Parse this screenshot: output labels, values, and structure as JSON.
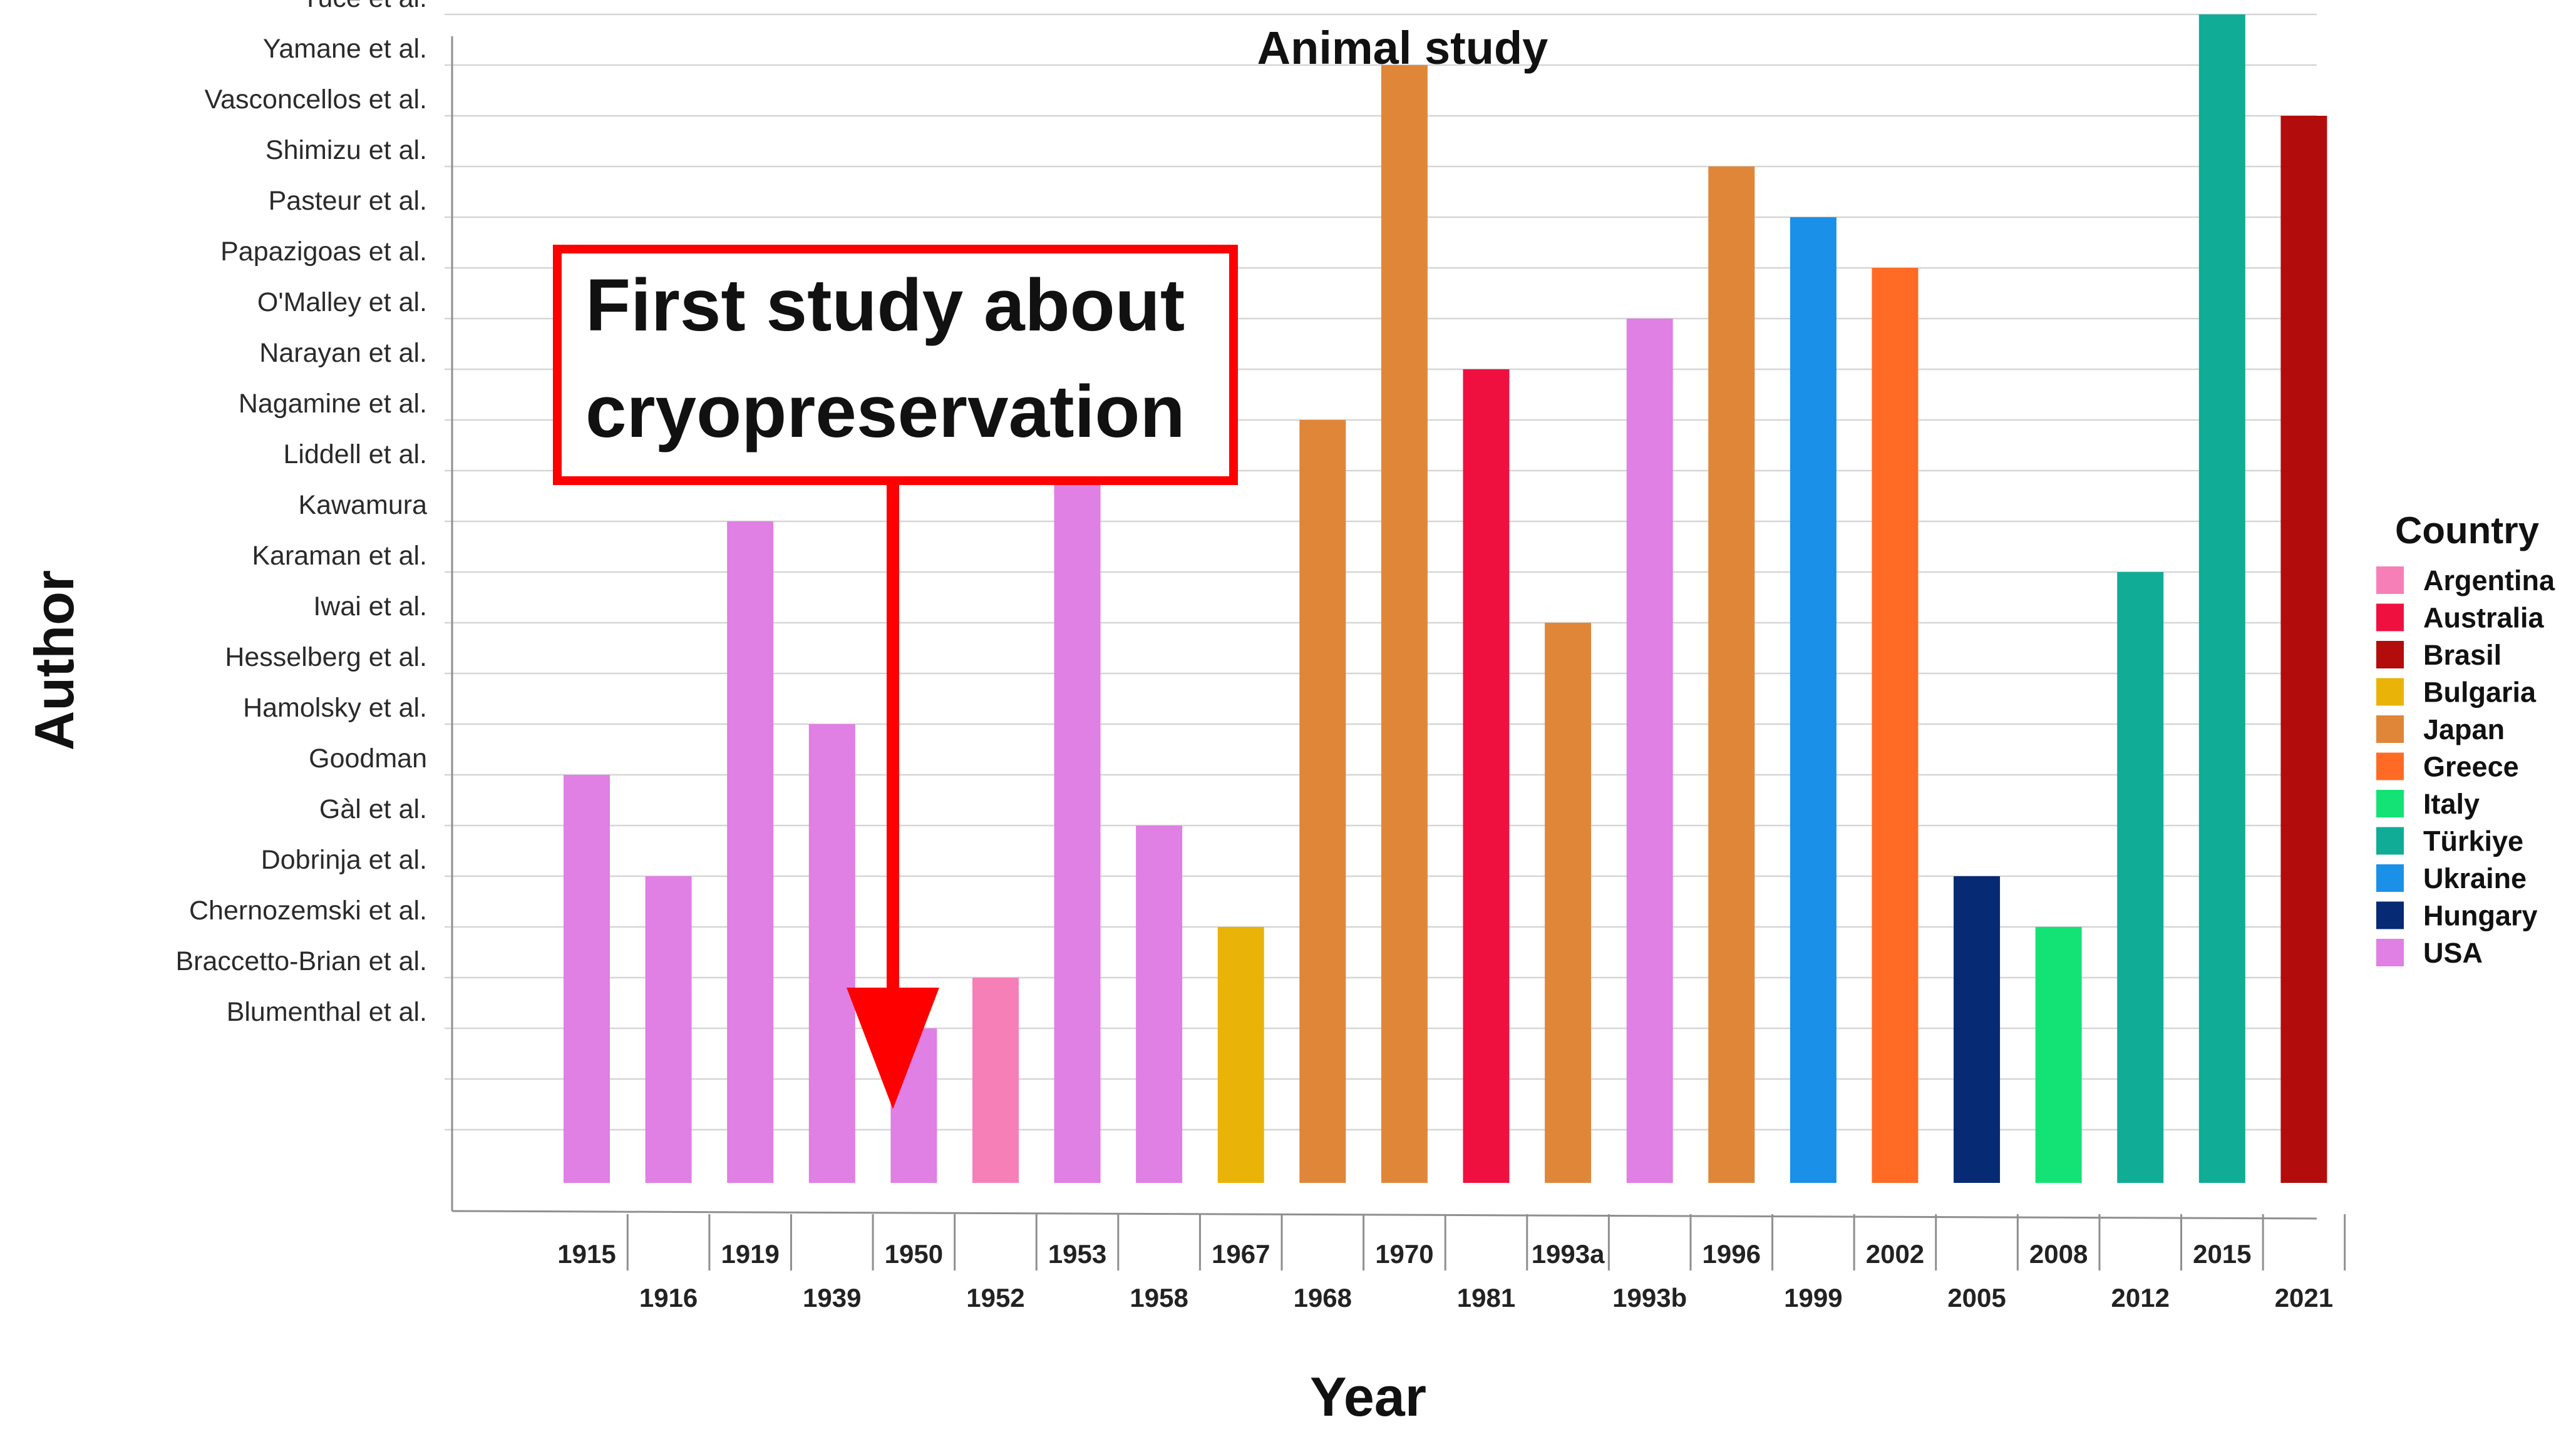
{
  "chart_data": {
    "type": "bar",
    "title": "Animal study",
    "xlabel": "Year",
    "ylabel": "Author",
    "y_categories": [
      "Blumenthal et al.",
      "Braccetto-Brian et al.",
      "Chernozemski et al.",
      "Dobrinja et al.",
      "Gàl et al.",
      "Goodman",
      "Hamolsky et al.",
      "Hesselberg et al.",
      "Iwai et al.",
      "Karaman et al.",
      "Kawamura",
      "Liddell et al.",
      "Nagamine et al.",
      "Narayan et al.",
      "O'Malley et al.",
      "Papazigoas et al.",
      "Pasteur et al.",
      "Shimizu et al.",
      "Vasconcellos et al.",
      "Yamane et al.",
      "Yuce et al."
    ],
    "categories": [
      "1915",
      "1916",
      "1919",
      "1939",
      "1950",
      "1952",
      "1953",
      "1958",
      "1967",
      "1968",
      "1970",
      "1981",
      "1993a",
      "1993b",
      "1996",
      "1999",
      "2002",
      "2005",
      "2008",
      "2012",
      "2015",
      "2021"
    ],
    "values": [
      "Goodman",
      "Dobrinja et al.",
      "Kawamura",
      "Hamolsky et al.",
      "Blumenthal et al.",
      "Braccetto-Brian et al.",
      "Liddell et al.",
      "Gàl et al.",
      "Chernozemski et al.",
      "Nagamine et al.",
      "Yamane et al.",
      "Narayan et al.",
      "Iwai et al.",
      "O'Malley et al.",
      "Shimizu et al.",
      "Pasteur et al.",
      "Papazigoas et al.",
      "Dobrinja et al.",
      "Chernozemski et al.",
      "Karaman et al.",
      "Yuce et al.",
      "Vasconcellos et al."
    ],
    "countries": [
      "USA",
      "USA",
      "USA",
      "USA",
      "USA",
      "Argentina",
      "USA",
      "USA",
      "Bulgaria",
      "Japan",
      "Japan",
      "Australia",
      "Japan",
      "USA",
      "Japan",
      "Ukraine",
      "Greece",
      "Hungary",
      "Italy",
      "Türkiye",
      "Türkiye",
      "Brasil"
    ],
    "legend_title": "Country",
    "legend": [
      {
        "name": "Argentina",
        "color": "#f77fb7"
      },
      {
        "name": "Australia",
        "color": "#f01040"
      },
      {
        "name": "Brasil",
        "color": "#b30c0c"
      },
      {
        "name": "Bulgaria",
        "color": "#eab308"
      },
      {
        "name": "Japan",
        "color": "#e08638"
      },
      {
        "name": "Greece",
        "color": "#ff6b24"
      },
      {
        "name": "Italy",
        "color": "#12e374"
      },
      {
        "name": "Türkiye",
        "color": "#10ac96"
      },
      {
        "name": "Ukraine",
        "color": "#1a90e8"
      },
      {
        "name": "Hungary",
        "color": "#062a73"
      },
      {
        "name": "USA",
        "color": "#e07fe4"
      }
    ],
    "legend_position": "right",
    "annotation": {
      "lines": [
        "First study about",
        "cryopreservation"
      ],
      "target_category": "1950",
      "color": "#ff0000"
    }
  }
}
